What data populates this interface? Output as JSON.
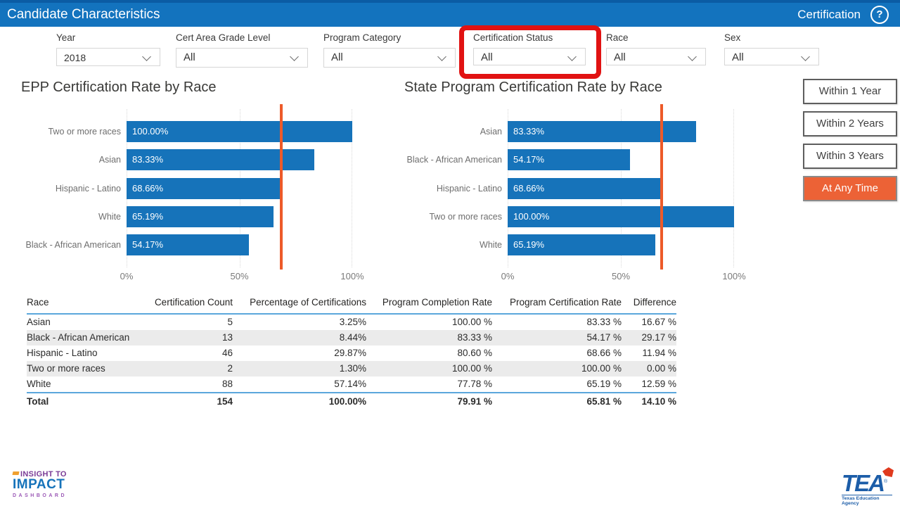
{
  "header": {
    "title": "Candidate Characteristics",
    "section": "Certification",
    "help_icon": "?"
  },
  "filters": [
    {
      "label": "Year",
      "value": "2018"
    },
    {
      "label": "Cert Area Grade Level",
      "value": "All"
    },
    {
      "label": "Program Category",
      "value": "All"
    },
    {
      "label": "Certification Status",
      "value": "All",
      "highlighted": true
    },
    {
      "label": "Race",
      "value": "All"
    },
    {
      "label": "Sex",
      "value": "All"
    }
  ],
  "chart_data": [
    {
      "type": "bar",
      "orientation": "horizontal",
      "title": "EPP Certification Rate by Race",
      "categories": [
        "Two or more races",
        "Asian",
        "Hispanic - Latino",
        "White",
        "Black - African American"
      ],
      "values": [
        100.0,
        83.33,
        68.66,
        65.19,
        54.17
      ],
      "value_labels": [
        "100.00%",
        "83.33%",
        "68.66%",
        "65.19%",
        "54.17%"
      ],
      "x_ticks": [
        "0%",
        "50%",
        "100%"
      ],
      "xlim": [
        0,
        100
      ],
      "grid": "dotted vertical at 0/50/100",
      "ref_line_pct": 68.5,
      "bar_color": "#1673BA",
      "ref_line_color": "#ED5A29"
    },
    {
      "type": "bar",
      "orientation": "horizontal",
      "title": "State Program Certification Rate by Race",
      "categories": [
        "Asian",
        "Black - African American",
        "Hispanic - Latino",
        "Two or more races",
        "White"
      ],
      "values": [
        83.33,
        54.17,
        68.66,
        100.0,
        65.19
      ],
      "value_labels": [
        "83.33%",
        "54.17%",
        "68.66%",
        "100.00%",
        "65.19%"
      ],
      "x_ticks": [
        "0%",
        "50%",
        "100%"
      ],
      "xlim": [
        0,
        100
      ],
      "grid": "dotted vertical at 0/50/100",
      "ref_line_pct": 68.0,
      "bar_color": "#1673BA",
      "ref_line_color": "#ED5A29"
    }
  ],
  "time_buttons": [
    {
      "label": "Within 1 Year",
      "active": false
    },
    {
      "label": "Within 2 Years",
      "active": false
    },
    {
      "label": "Within 3 Years",
      "active": false
    },
    {
      "label": "At Any Time",
      "active": true
    }
  ],
  "table": {
    "columns": [
      "Race",
      "Certification Count",
      "Percentage of Certifications",
      "Program Completion Rate",
      "Program Certification Rate",
      "Difference"
    ],
    "rows": [
      [
        "Asian",
        "5",
        "3.25%",
        "100.00 %",
        "83.33 %",
        "16.67 %"
      ],
      [
        "Black - African American",
        "13",
        "8.44%",
        "83.33 %",
        "54.17 %",
        "29.17 %"
      ],
      [
        "Hispanic - Latino",
        "46",
        "29.87%",
        "80.60 %",
        "68.66 %",
        "11.94 %"
      ],
      [
        "Two or more races",
        "2",
        "1.30%",
        "100.00 %",
        "100.00 %",
        "0.00 %"
      ],
      [
        "White",
        "88",
        "57.14%",
        "77.78 %",
        "65.19 %",
        "12.59 %"
      ]
    ],
    "total": [
      "Total",
      "154",
      "100.00%",
      "79.91 %",
      "65.81 %",
      "14.10 %"
    ]
  },
  "footer": {
    "impact_logo": {
      "line1": "INSIGHT TO",
      "line2": "IMPACT",
      "line3": "DASHBOARD"
    },
    "tea_logo": {
      "acronym": "TEA",
      "reg": "®",
      "name": "Texas Education Agency"
    }
  },
  "colors": {
    "header_blue": "#1373BE",
    "bar_blue": "#1673BA",
    "ref_line_orange": "#ED5A29",
    "active_button_orange": "#EC6236",
    "highlight_red": "#E11212",
    "table_line_blue": "#5BA7DC"
  }
}
